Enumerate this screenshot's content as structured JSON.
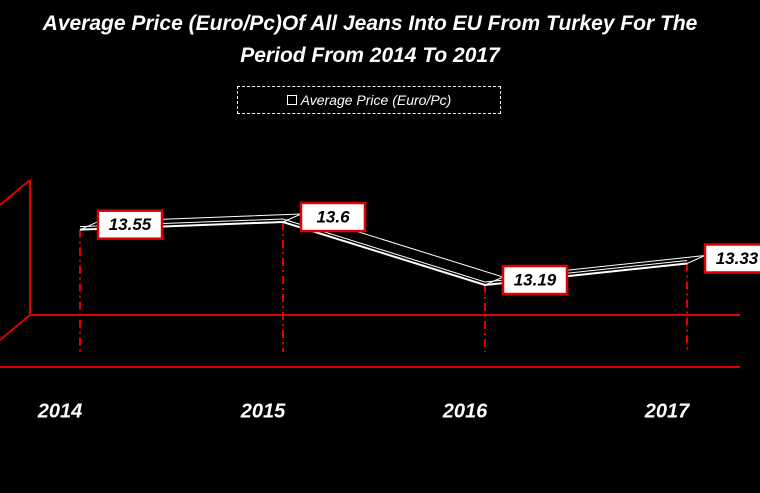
{
  "chart_data": {
    "type": "line",
    "title": "Average Price (Euro/Pc)Of All Jeans Into EU From Turkey For The Period From 2014 To 2017",
    "categories": [
      "2014",
      "2015",
      "2016",
      "2017"
    ],
    "series": [
      {
        "name": "Average Price (Euro/Pc)",
        "color": "#ffffff",
        "values": [
          13.55,
          13.6,
          13.19,
          13.33
        ]
      }
    ],
    "legend": "top"
  }
}
